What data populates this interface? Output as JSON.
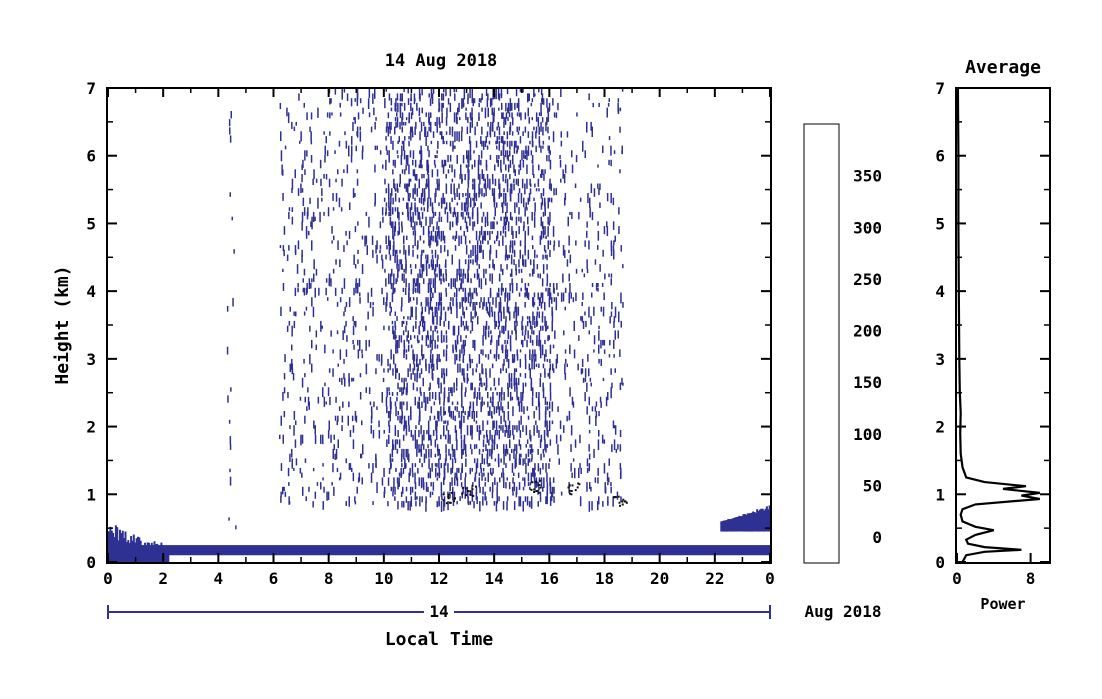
{
  "chart_data": [
    {
      "type": "heatmap",
      "title": "14 Aug 2018",
      "xlabel": "Local Time",
      "ylabel": "Height (km)",
      "xlim": [
        0,
        24
      ],
      "ylim": [
        0,
        7
      ],
      "xticks": [
        "0",
        "2",
        "4",
        "6",
        "8",
        "10",
        "12",
        "14",
        "16",
        "18",
        "20",
        "22",
        "0"
      ],
      "yticks": [
        "0",
        "1",
        "2",
        "3",
        "4",
        "5",
        "6",
        "7"
      ],
      "date_axis": {
        "day_label": "14",
        "month_label": "Aug 2018"
      },
      "colorbar": {
        "ticks": [
          "0",
          "50",
          "100",
          "150",
          "200",
          "250",
          "300",
          "350"
        ],
        "colors": [
          "#ffffff",
          "#2e3192",
          "#2b2fb8",
          "#2a36e8",
          "#2f5cf0",
          "#3a86ef",
          "#33b2f0",
          "#2cdcf0",
          "#30f0d8",
          "#5ef0a8",
          "#90f08a",
          "#c0f05a",
          "#f0f03a",
          "#f8c832",
          "#f8963a",
          "#f86a3a",
          "#f83a3a"
        ]
      },
      "features": {
        "surface_layer": {
          "color": "#2e3192",
          "height_km": [
            0.1,
            0.25
          ]
        },
        "morning_layer": {
          "time_h": [
            0,
            2.2
          ],
          "height_km": [
            0,
            0.6
          ]
        },
        "evening_layer": {
          "time_h": [
            22.2,
            24
          ],
          "height_km": [
            0.6,
            0.85
          ]
        },
        "scatter_region": {
          "time_h": [
            6.2,
            18.6
          ],
          "height_km": [
            0.9,
            7
          ]
        },
        "scatter_peak_time_h": [
          10,
          16
        ],
        "thin_column_time_h": 4.3,
        "black_clusters_km": 1.0
      }
    },
    {
      "type": "line",
      "title": "Average",
      "xlabel": "Power",
      "ylabel": "",
      "xlim": [
        0,
        10
      ],
      "ylim": [
        0,
        7
      ],
      "xticks": [
        "0",
        "8"
      ],
      "yticks": [
        "0",
        "1",
        "2",
        "3",
        "4",
        "5",
        "6",
        "7"
      ],
      "series": [
        {
          "values": [
            {
              "x": 0.6,
              "y": 0.0
            },
            {
              "x": 1.0,
              "y": 0.1
            },
            {
              "x": 3.0,
              "y": 0.15
            },
            {
              "x": 7.0,
              "y": 0.18
            },
            {
              "x": 3.0,
              "y": 0.22
            },
            {
              "x": 1.2,
              "y": 0.27
            },
            {
              "x": 1.0,
              "y": 0.33
            },
            {
              "x": 2.0,
              "y": 0.4
            },
            {
              "x": 4.0,
              "y": 0.47
            },
            {
              "x": 2.0,
              "y": 0.52
            },
            {
              "x": 0.6,
              "y": 0.6
            },
            {
              "x": 0.4,
              "y": 0.7
            },
            {
              "x": 0.6,
              "y": 0.78
            },
            {
              "x": 2.0,
              "y": 0.85
            },
            {
              "x": 9.0,
              "y": 0.93
            },
            {
              "x": 7.0,
              "y": 0.98
            },
            {
              "x": 9.0,
              "y": 1.02
            },
            {
              "x": 5.0,
              "y": 1.08
            },
            {
              "x": 7.5,
              "y": 1.12
            },
            {
              "x": 3.0,
              "y": 1.18
            },
            {
              "x": 1.0,
              "y": 1.25
            },
            {
              "x": 0.6,
              "y": 1.4
            },
            {
              "x": 0.4,
              "y": 1.6
            },
            {
              "x": 0.35,
              "y": 1.9
            },
            {
              "x": 0.4,
              "y": 2.2
            },
            {
              "x": 0.3,
              "y": 2.5
            },
            {
              "x": 0.25,
              "y": 3.0
            },
            {
              "x": 0.2,
              "y": 4.0
            },
            {
              "x": 0.15,
              "y": 5.0
            },
            {
              "x": 0.15,
              "y": 6.0
            },
            {
              "x": 0.1,
              "y": 7.0
            }
          ]
        }
      ]
    }
  ]
}
